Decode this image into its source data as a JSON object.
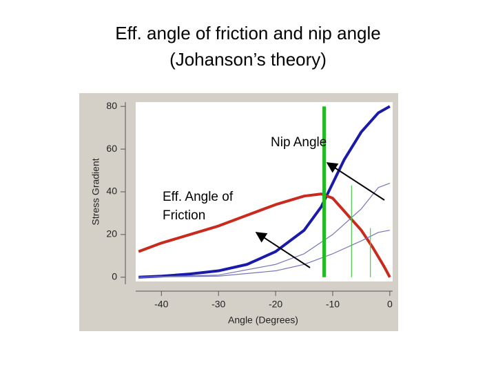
{
  "title_lines": [
    "Eff. angle of friction and nip angle",
    "(Johanson’s theory)"
  ],
  "chart_data": {
    "type": "line",
    "x_label": "Angle (Degrees)",
    "y_label": "Stress Gradient",
    "xlim": [
      -44.5,
      0.5
    ],
    "ylim": [
      -2,
      82
    ],
    "xticks": [
      -40,
      -30,
      -20,
      -10,
      0
    ],
    "yticks": [
      0,
      20,
      40,
      60,
      80
    ],
    "series": [
      {
        "color": "#1a1aa8",
        "width": 4,
        "x": [
          -44,
          -40,
          -35,
          -30,
          -25,
          -20,
          -15,
          -12,
          -10,
          -8,
          -5,
          -2,
          0
        ],
        "values": [
          0,
          0.5,
          1.5,
          3,
          6,
          12,
          22,
          33,
          44,
          55,
          68,
          77,
          80
        ]
      },
      {
        "color": "#c82a1e",
        "width": 4,
        "x": [
          -44,
          -40,
          -35,
          -30,
          -25,
          -20,
          -15,
          -12,
          -10,
          -8,
          -5,
          -3,
          -1,
          0
        ],
        "values": [
          12,
          16,
          20,
          24,
          29,
          34,
          38,
          39,
          37,
          31,
          22,
          14,
          5,
          0
        ]
      },
      {
        "color": "#7474b8",
        "width": 1.2,
        "x": [
          -44,
          -30,
          -20,
          -15,
          -10,
          -5,
          -2,
          0
        ],
        "values": [
          0,
          1,
          6,
          11,
          20,
          32,
          42,
          44
        ]
      },
      {
        "color": "#7474b8",
        "width": 1.2,
        "x": [
          -44,
          -30,
          -20,
          -15,
          -10,
          -5,
          -2,
          0
        ],
        "values": [
          0,
          0.5,
          3,
          6,
          11,
          17,
          21,
          22
        ]
      },
      {
        "color": "#22bb22",
        "width": 5,
        "x": [
          -11.5,
          -11.5
        ],
        "values": [
          0,
          80
        ]
      },
      {
        "color": "#44cc44",
        "width": 1.2,
        "x": [
          -6.7,
          -6.7
        ],
        "values": [
          0,
          43
        ]
      },
      {
        "color": "#44cc44",
        "width": 1.2,
        "x": [
          -3.4,
          -3.4
        ],
        "values": [
          0,
          23
        ]
      }
    ],
    "annotations": [
      {
        "text": "Nip Angle"
      },
      {
        "text": [
          "Eff. Angle of",
          "Friction"
        ]
      }
    ]
  }
}
